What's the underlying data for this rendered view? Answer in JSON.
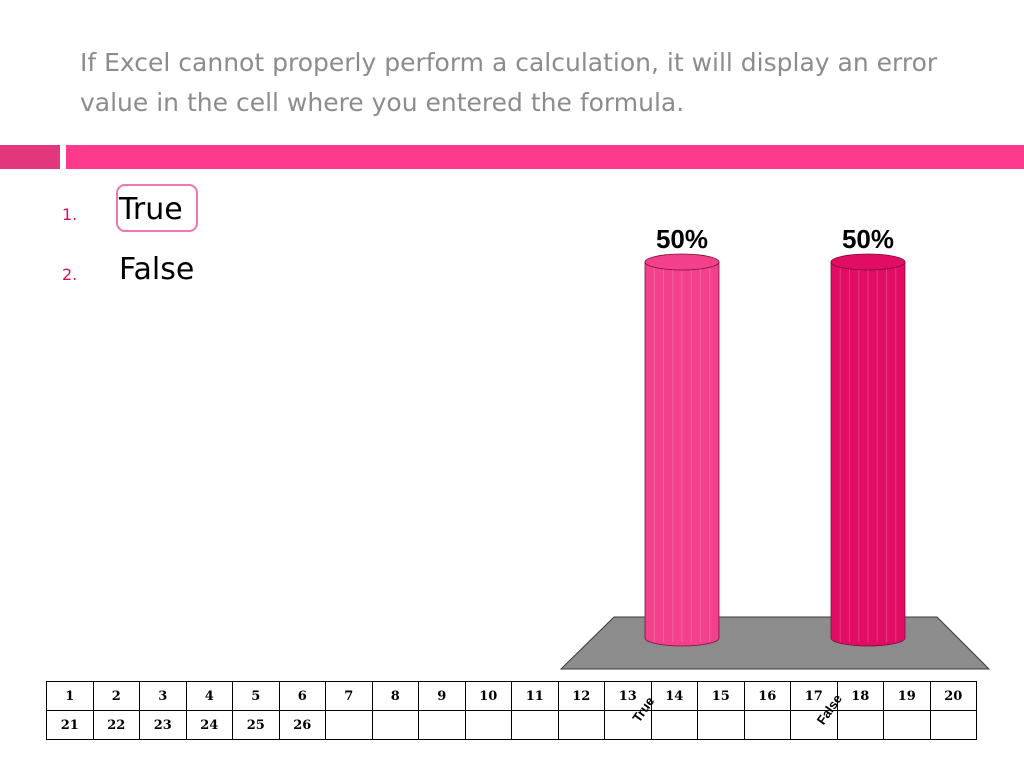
{
  "slide": {
    "question": "If Excel cannot properly perform a calculation, it will display an error value in the cell where you entered the formula.",
    "options": [
      {
        "number": "1.",
        "text": "True"
      },
      {
        "number": "2.",
        "text": "False"
      }
    ],
    "highlighted_option": "True"
  },
  "colors": {
    "accent_left": "#e2367d",
    "accent_right": "#fe3a8c",
    "bar_true": "#f2408a",
    "bar_false": "#e10d63",
    "floor": "#8c8c8c",
    "question_text": "#8c8c8c"
  },
  "chart_data": {
    "type": "bar",
    "style": "3d-cylinder",
    "categories": [
      "True",
      "False"
    ],
    "values": [
      50,
      50
    ],
    "data_labels": [
      "50%",
      "50%"
    ],
    "ylim": [
      0,
      50
    ],
    "grid": false,
    "legend": "none"
  },
  "keypad_grid": {
    "rows": [
      [
        "1",
        "2",
        "3",
        "4",
        "5",
        "6",
        "7",
        "8",
        "9",
        "10",
        "11",
        "12",
        "13",
        "14",
        "15",
        "16",
        "17",
        "18",
        "19",
        "20"
      ],
      [
        "21",
        "22",
        "23",
        "24",
        "25",
        "26",
        "",
        "",
        "",
        "",
        "",
        "",
        "",
        "",
        "",
        "",
        "",
        "",
        "",
        ""
      ]
    ]
  }
}
